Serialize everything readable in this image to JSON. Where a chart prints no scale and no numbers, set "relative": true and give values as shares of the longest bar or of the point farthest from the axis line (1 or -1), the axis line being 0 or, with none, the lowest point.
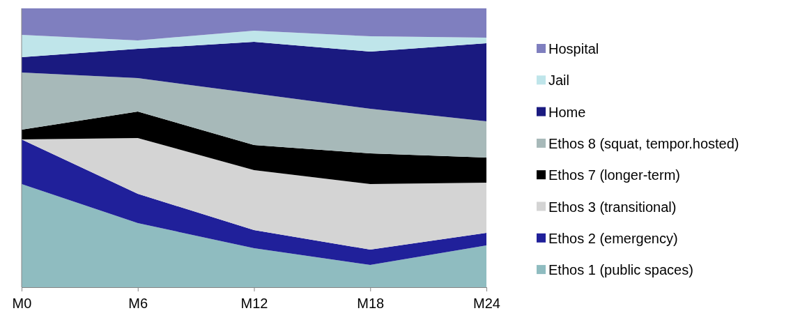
{
  "chart_data": {
    "type": "area",
    "stacked": true,
    "relative": true,
    "legend": "right",
    "categories": [
      "M0",
      "M6",
      "M12",
      "M18",
      "M24"
    ],
    "series": [
      {
        "name": "Ethos 1 (public spaces)",
        "color": "#8fbcc0",
        "values": [
          0.37,
          0.23,
          0.14,
          0.08,
          0.15
        ]
      },
      {
        "name": "Ethos 2 (emergency)",
        "color": "#20209a",
        "values": [
          0.16,
          0.105,
          0.065,
          0.055,
          0.045
        ]
      },
      {
        "name": "Ethos 3 (transitional)",
        "color": "#d4d4d4",
        "values": [
          0,
          0.2,
          0.215,
          0.235,
          0.18
        ]
      },
      {
        "name": "Ethos 7 (longer-term)",
        "color": "#000000",
        "values": [
          0.035,
          0.095,
          0.09,
          0.11,
          0.09
        ]
      },
      {
        "name": "Ethos 8 (squat, tempor.hosted)",
        "color": "#a7b9b9",
        "values": [
          0.205,
          0.12,
          0.185,
          0.16,
          0.13
        ]
      },
      {
        "name": "Home",
        "color": "#1a1a80",
        "values": [
          0.055,
          0.105,
          0.185,
          0.205,
          0.28
        ]
      },
      {
        "name": "Jail",
        "color": "#bfe5ea",
        "values": [
          0.08,
          0.03,
          0.04,
          0.055,
          0.02
        ]
      },
      {
        "name": "Hospital",
        "color": "#7f7fbf",
        "values": [
          0.095,
          0.115,
          0.08,
          0.1,
          0.105
        ]
      }
    ]
  }
}
